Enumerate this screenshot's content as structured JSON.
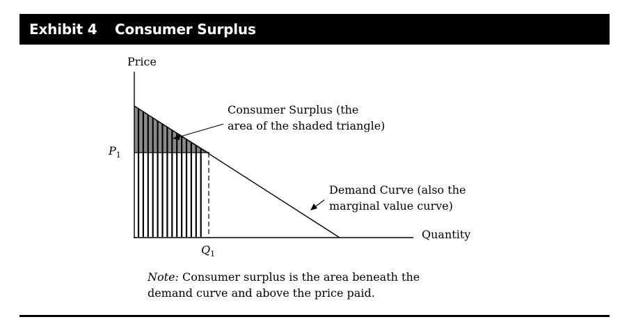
{
  "header": {
    "exhibit": "Exhibit 4",
    "title": "Consumer Surplus"
  },
  "axes": {
    "y_label": "Price",
    "x_label": "Quantity",
    "price_marker": "P",
    "price_sub": "1",
    "quantity_marker": "Q",
    "quantity_sub": "1"
  },
  "annotations": {
    "surplus_line1": "Consumer Surplus (the",
    "surplus_line2": "area of the shaded triangle)",
    "demand_line1": "Demand Curve (also the",
    "demand_line2": "marginal value curve)"
  },
  "note": {
    "label": "Note:",
    "text": " Consumer surplus is the area beneath the demand curve and above the price paid."
  },
  "colors": {
    "shade": "#8a8a8a",
    "ink": "#000000"
  }
}
